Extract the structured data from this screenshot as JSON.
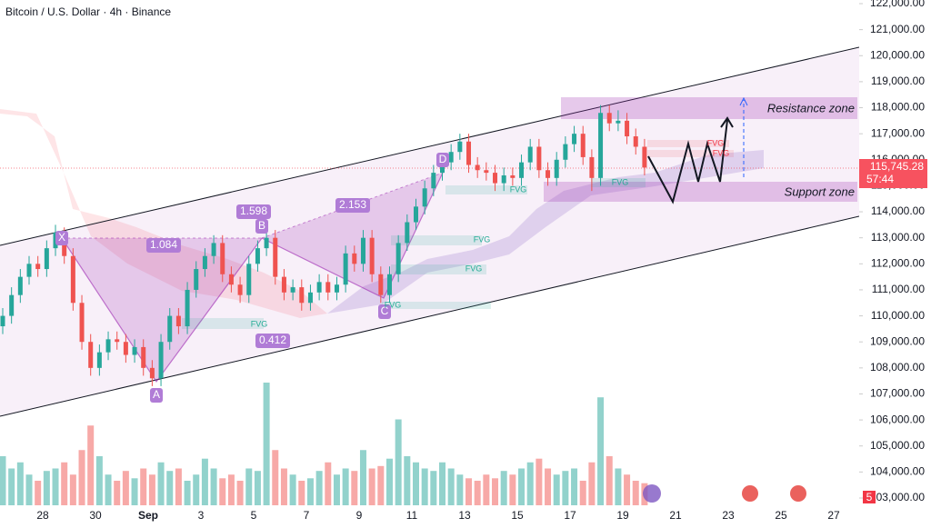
{
  "chart_data": {
    "type": "candlestick",
    "title": "Bitcoin / U.S. Dollar · 4h · Binance",
    "up_color": "#26a69a",
    "down_color": "#ef5350",
    "ylim": [
      103000,
      122000
    ],
    "yticks": [
      {
        "value": 103000,
        "label": "103,000.00"
      },
      {
        "value": 104000,
        "label": "104,000.00"
      },
      {
        "value": 105000,
        "label": "105,000.00"
      },
      {
        "value": 106000,
        "label": "106,000.00"
      },
      {
        "value": 107000,
        "label": "107,000.00"
      },
      {
        "value": 108000,
        "label": "108,000.00"
      },
      {
        "value": 109000,
        "label": "109,000.00"
      },
      {
        "value": 110000,
        "label": "110,000.00"
      },
      {
        "value": 111000,
        "label": "111,000.00"
      },
      {
        "value": 112000,
        "label": "112,000.00"
      },
      {
        "value": 113000,
        "label": "113,000.00"
      },
      {
        "value": 114000,
        "label": "114,000.00"
      },
      {
        "value": 115000,
        "label": "115,000.00"
      },
      {
        "value": 116000,
        "label": "116,000.00"
      },
      {
        "value": 117000,
        "label": "117,000.00"
      },
      {
        "value": 118000,
        "label": "118,000.00"
      },
      {
        "value": 119000,
        "label": "119,000.00"
      },
      {
        "value": 120000,
        "label": "120,000.00"
      },
      {
        "value": 121000,
        "label": "121,000.00"
      },
      {
        "value": 122000,
        "label": "122,000.00"
      }
    ],
    "x_labels": [
      "28",
      "30",
      "Sep",
      "3",
      "5",
      "7",
      "9",
      "11",
      "13",
      "15",
      "17",
      "19",
      "21",
      "23",
      "25",
      "27"
    ],
    "ohlc": [
      [
        109600,
        110300,
        109300,
        110000
      ],
      [
        110000,
        111100,
        109700,
        110800
      ],
      [
        110800,
        111800,
        110500,
        111500
      ],
      [
        111500,
        112300,
        111200,
        112000
      ],
      [
        112000,
        112300,
        111500,
        111800
      ],
      [
        111800,
        112900,
        111500,
        112600
      ],
      [
        112600,
        113500,
        112300,
        113200
      ],
      [
        113200,
        113400,
        112000,
        112300
      ],
      [
        112300,
        112600,
        110200,
        110500
      ],
      [
        110500,
        110800,
        108700,
        109000
      ],
      [
        109000,
        109300,
        107700,
        108000
      ],
      [
        108000,
        108900,
        107700,
        108600
      ],
      [
        108600,
        109400,
        108300,
        109100
      ],
      [
        109100,
        109400,
        108700,
        109000
      ],
      [
        109000,
        109300,
        108200,
        108500
      ],
      [
        108500,
        109100,
        108200,
        108800
      ],
      [
        108800,
        109100,
        107700,
        108000
      ],
      [
        108000,
        108300,
        107300,
        107600
      ],
      [
        107600,
        109300,
        107300,
        109000
      ],
      [
        109000,
        110300,
        108700,
        110000
      ],
      [
        110000,
        110300,
        109300,
        109600
      ],
      [
        109600,
        111300,
        109300,
        111000
      ],
      [
        111000,
        112100,
        110700,
        111800
      ],
      [
        111800,
        112600,
        111500,
        112300
      ],
      [
        112300,
        113100,
        112000,
        112800
      ],
      [
        112800,
        113100,
        111300,
        111600
      ],
      [
        111600,
        111900,
        110900,
        111200
      ],
      [
        111200,
        111500,
        110500,
        110800
      ],
      [
        110800,
        112300,
        110500,
        112000
      ],
      [
        112000,
        112900,
        111700,
        112600
      ],
      [
        112600,
        113300,
        112300,
        113000
      ],
      [
        113000,
        113300,
        111200,
        111500
      ],
      [
        111500,
        111800,
        110600,
        110900
      ],
      [
        110900,
        111400,
        110600,
        111100
      ],
      [
        111100,
        111400,
        110200,
        110500
      ],
      [
        110500,
        111200,
        110200,
        110900
      ],
      [
        110900,
        111600,
        110600,
        111300
      ],
      [
        111300,
        111600,
        110600,
        110900
      ],
      [
        110900,
        111500,
        110600,
        111200
      ],
      [
        111200,
        112700,
        110900,
        112400
      ],
      [
        112400,
        112700,
        111700,
        112000
      ],
      [
        112000,
        113300,
        111700,
        113000
      ],
      [
        113000,
        113300,
        111300,
        111600
      ],
      [
        111600,
        111900,
        110500,
        110800
      ],
      [
        110800,
        111900,
        110500,
        111600
      ],
      [
        111600,
        113100,
        111300,
        112800
      ],
      [
        112800,
        113900,
        112500,
        113600
      ],
      [
        113600,
        114500,
        113300,
        114200
      ],
      [
        114200,
        115200,
        113900,
        114900
      ],
      [
        114900,
        115800,
        114600,
        115500
      ],
      [
        115500,
        116200,
        115200,
        115900
      ],
      [
        115900,
        116600,
        115600,
        116300
      ],
      [
        116300,
        117000,
        116000,
        116700
      ],
      [
        116700,
        117000,
        115500,
        115800
      ],
      [
        115800,
        116100,
        115300,
        115600
      ],
      [
        115600,
        115900,
        115200,
        115500
      ],
      [
        115500,
        115800,
        114800,
        115100
      ],
      [
        115100,
        115700,
        114800,
        115400
      ],
      [
        115400,
        115700,
        115000,
        115300
      ],
      [
        115300,
        116200,
        115000,
        115900
      ],
      [
        115900,
        116800,
        115600,
        116500
      ],
      [
        116500,
        116800,
        115300,
        115600
      ],
      [
        115600,
        115900,
        115000,
        115300
      ],
      [
        115300,
        116300,
        115000,
        116000
      ],
      [
        116000,
        116900,
        115700,
        116600
      ],
      [
        116600,
        117300,
        116300,
        117000
      ],
      [
        117000,
        117300,
        115800,
        116100
      ],
      [
        116100,
        116400,
        114800,
        115300
      ],
      [
        115300,
        118100,
        115000,
        117800
      ],
      [
        117800,
        118100,
        117100,
        117400
      ],
      [
        117400,
        117900,
        117100,
        117500
      ],
      [
        117500,
        117800,
        116600,
        116900
      ],
      [
        116900,
        117200,
        116200,
        116500
      ],
      [
        116500,
        116800,
        115400,
        115700
      ]
    ],
    "volume": [
      40,
      30,
      35,
      25,
      20,
      28,
      30,
      35,
      25,
      45,
      65,
      40,
      25,
      20,
      28,
      22,
      30,
      25,
      35,
      28,
      30,
      20,
      25,
      38,
      30,
      22,
      25,
      20,
      30,
      28,
      100,
      45,
      30,
      25,
      20,
      22,
      28,
      35,
      25,
      30,
      28,
      45,
      30,
      32,
      38,
      70,
      40,
      35,
      30,
      28,
      35,
      30,
      25,
      22,
      20,
      25,
      22,
      28,
      25,
      30,
      35,
      38,
      30,
      25,
      28,
      30,
      20,
      35,
      88,
      40,
      30,
      25,
      20,
      18
    ],
    "pattern_points": [
      "X",
      "A",
      "B",
      "C",
      "D"
    ],
    "ratios": [
      "1.084",
      "1.598",
      "2.153",
      "0.412"
    ],
    "fvg_labels": [
      "FVG",
      "FVG",
      "FVG",
      "FVG",
      "FVG",
      "FVG",
      "FVG",
      "FVG"
    ],
    "annotations": {
      "resistance": "Resistance zone",
      "support": "Support zone",
      "price": "115,745.28",
      "countdown": "57:44",
      "badge": "5"
    }
  }
}
